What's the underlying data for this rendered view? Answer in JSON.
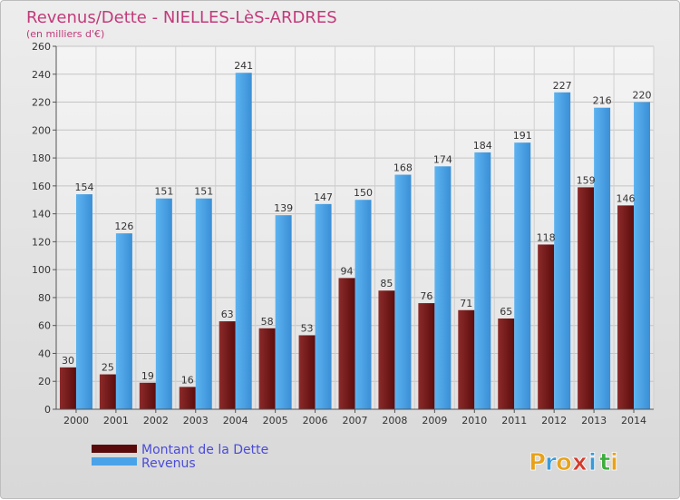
{
  "chart_data": {
    "type": "bar",
    "title": "Revenus/Dette - NIELLES-LèS-ARDRES",
    "subtitle": "(en milliers d'€)",
    "categories": [
      "2000",
      "2001",
      "2002",
      "2003",
      "2004",
      "2005",
      "2006",
      "2007",
      "2008",
      "2009",
      "2010",
      "2011",
      "2012",
      "2013",
      "2014"
    ],
    "series": [
      {
        "name": "Montant de la Dette",
        "values": [
          30,
          25,
          19,
          16,
          63,
          58,
          53,
          94,
          85,
          76,
          71,
          65,
          118,
          159,
          146
        ],
        "color": "#7a1a1a"
      },
      {
        "name": "Revenus",
        "values": [
          154,
          126,
          151,
          151,
          241,
          139,
          147,
          150,
          168,
          174,
          184,
          191,
          227,
          216,
          220
        ],
        "color": "#4aa3e8"
      }
    ],
    "ylim": [
      0,
      260
    ],
    "yticks": [
      0,
      20,
      40,
      60,
      80,
      100,
      120,
      140,
      160,
      180,
      200,
      220,
      240,
      260
    ],
    "grid": true,
    "legend_position": "bottom-left"
  },
  "logo": {
    "letters": [
      "P",
      "r",
      "o",
      "x",
      "i",
      "t",
      "i"
    ],
    "colors": [
      "#e8a21a",
      "#3a9ad9",
      "#e8a21a",
      "#d33b2c",
      "#3a9ad9",
      "#3cae3c",
      "#e8a21a"
    ]
  }
}
